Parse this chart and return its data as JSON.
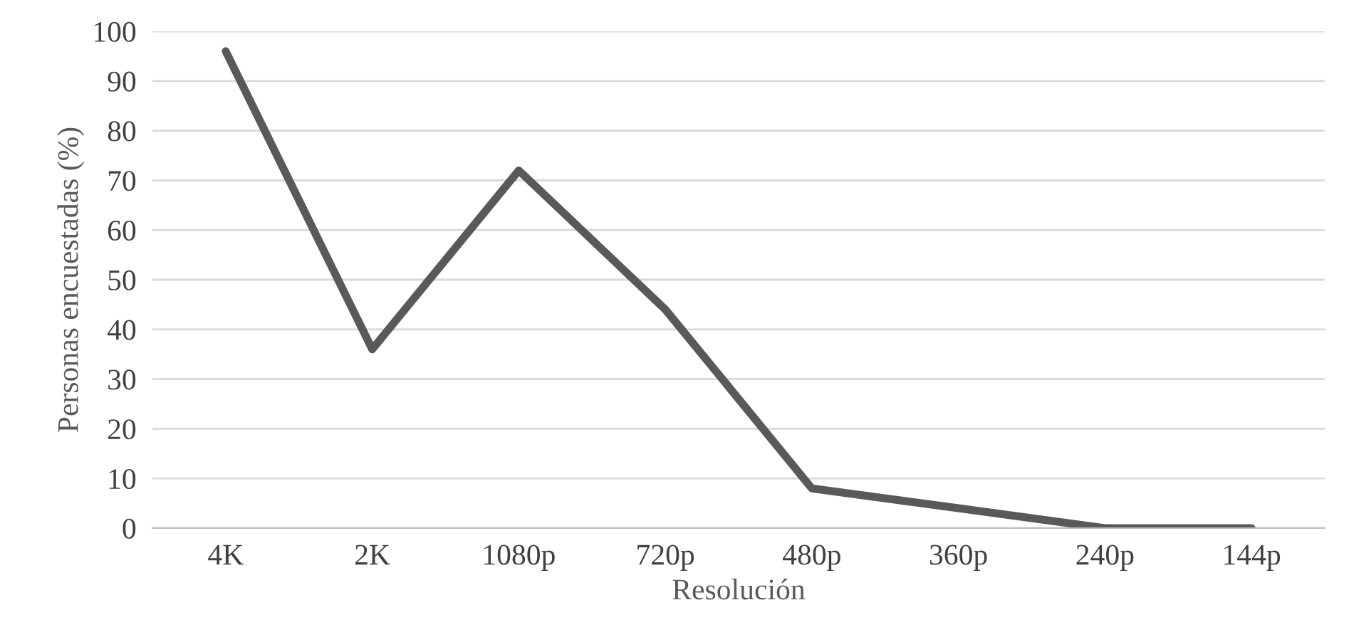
{
  "chart_data": {
    "type": "line",
    "xlabel": "Resolución",
    "ylabel": "Personas encuestadas (%)",
    "categories": [
      "4K",
      "2K",
      "1080p",
      "720p",
      "480p",
      "360p",
      "240p",
      "144p"
    ],
    "series": [
      {
        "color": "#595959",
        "values": [
          96,
          36,
          72,
          44,
          8,
          4,
          0,
          0
        ]
      }
    ],
    "ylim": [
      0,
      100
    ],
    "yticks": [
      0,
      10,
      20,
      30,
      40,
      50,
      60,
      70,
      80,
      90,
      100
    ],
    "grid": "y",
    "marker": "none",
    "line_style": "solid"
  }
}
